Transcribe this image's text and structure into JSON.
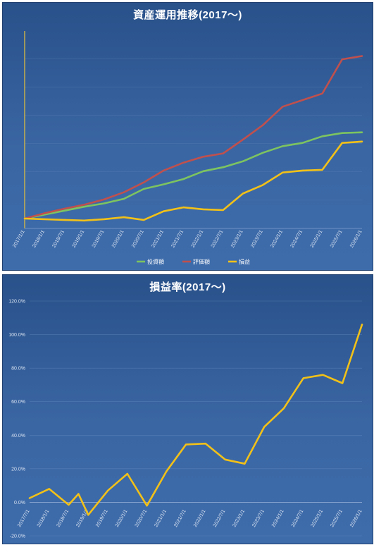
{
  "charts": {
    "top_title": "資産運用推移(2017～)",
    "bottom_title": "損益率(2017～)"
  },
  "chart_data": [
    {
      "type": "line",
      "title": "資産運用推移(2017～)",
      "xlabel": "",
      "ylabel": "",
      "categories": [
        "2017/1/1",
        "2018/1/1",
        "2018/7/1",
        "2019/1/1",
        "2019/7/1",
        "2020/1/1",
        "2020/7/1",
        "2021/1/1",
        "2021/7/1",
        "2022/1/1",
        "2022/7/1",
        "2023/1/1",
        "2023/7/1",
        "2024/1/1",
        "2024/7/1",
        "2025/1/1",
        "2025/7/1",
        "2026/1/1"
      ],
      "ylim": [
        -15,
        285
      ],
      "grid": true,
      "legend_position": "bottom",
      "series": [
        {
          "name": "投資額",
          "color": "#7dc460",
          "x": [
            0,
            1,
            2,
            3,
            4,
            5,
            6,
            7,
            8,
            9,
            10,
            11,
            12,
            13,
            14,
            15,
            16,
            17
          ],
          "y": [
            0,
            6,
            12,
            18,
            23,
            30,
            45,
            52,
            60,
            72,
            78,
            87,
            100,
            110,
            115,
            125,
            130,
            131
          ]
        },
        {
          "name": "評価額",
          "color": "#c0504d",
          "x": [
            0,
            1,
            2,
            3,
            4,
            5,
            6,
            7,
            8,
            9,
            10,
            11,
            12,
            13,
            14,
            15,
            16,
            17
          ],
          "y": [
            0,
            8,
            15,
            21,
            29,
            40,
            55,
            73,
            85,
            94,
            99,
            120,
            142,
            170,
            180,
            190,
            242,
            247
          ]
        },
        {
          "name": "損益",
          "color": "#f2c118",
          "x": [
            0,
            1,
            2,
            3,
            4,
            5,
            6,
            7,
            8,
            9,
            10,
            11,
            12,
            13,
            14,
            15,
            16,
            17
          ],
          "y": [
            0,
            -1,
            -2,
            -3,
            -1,
            2,
            -2,
            11,
            17,
            14,
            13,
            38,
            51,
            70,
            73,
            74,
            115,
            117
          ]
        }
      ]
    },
    {
      "type": "line",
      "title": "損益率(2017～)",
      "xlabel": "",
      "ylabel": "",
      "categories": [
        "2017/7/1",
        "2018/1/1",
        "2018/7/1",
        "2019/1/1",
        "2019/7/1",
        "2020/1/1",
        "2020/7/1",
        "2021/1/1",
        "2021/7/1",
        "2022/1/1",
        "2022/7/1",
        "2023/1/1",
        "2023/7/1",
        "2024/1/1",
        "2024/7/1",
        "2025/1/1",
        "2025/7/1",
        "2026/1/1"
      ],
      "y_ticks": [
        "120.0%",
        "100.0%",
        "80.0%",
        "60.0%",
        "40.0%",
        "20.0%",
        "0.0%",
        "-20.0%"
      ],
      "ylim": [
        -20,
        120
      ],
      "grid": true,
      "series": [
        {
          "name": "損益率",
          "color": "#f2c118",
          "x": [
            0,
            1,
            2,
            2.5,
            3,
            4,
            5,
            6,
            7,
            8,
            9,
            10,
            11,
            12,
            13,
            14,
            15,
            16,
            17
          ],
          "y": [
            2.5,
            8,
            -1.5,
            5,
            -7.5,
            7,
            17,
            -2,
            18.5,
            34.5,
            35,
            25.5,
            23,
            45,
            56,
            74,
            76,
            71,
            106
          ]
        }
      ]
    }
  ]
}
